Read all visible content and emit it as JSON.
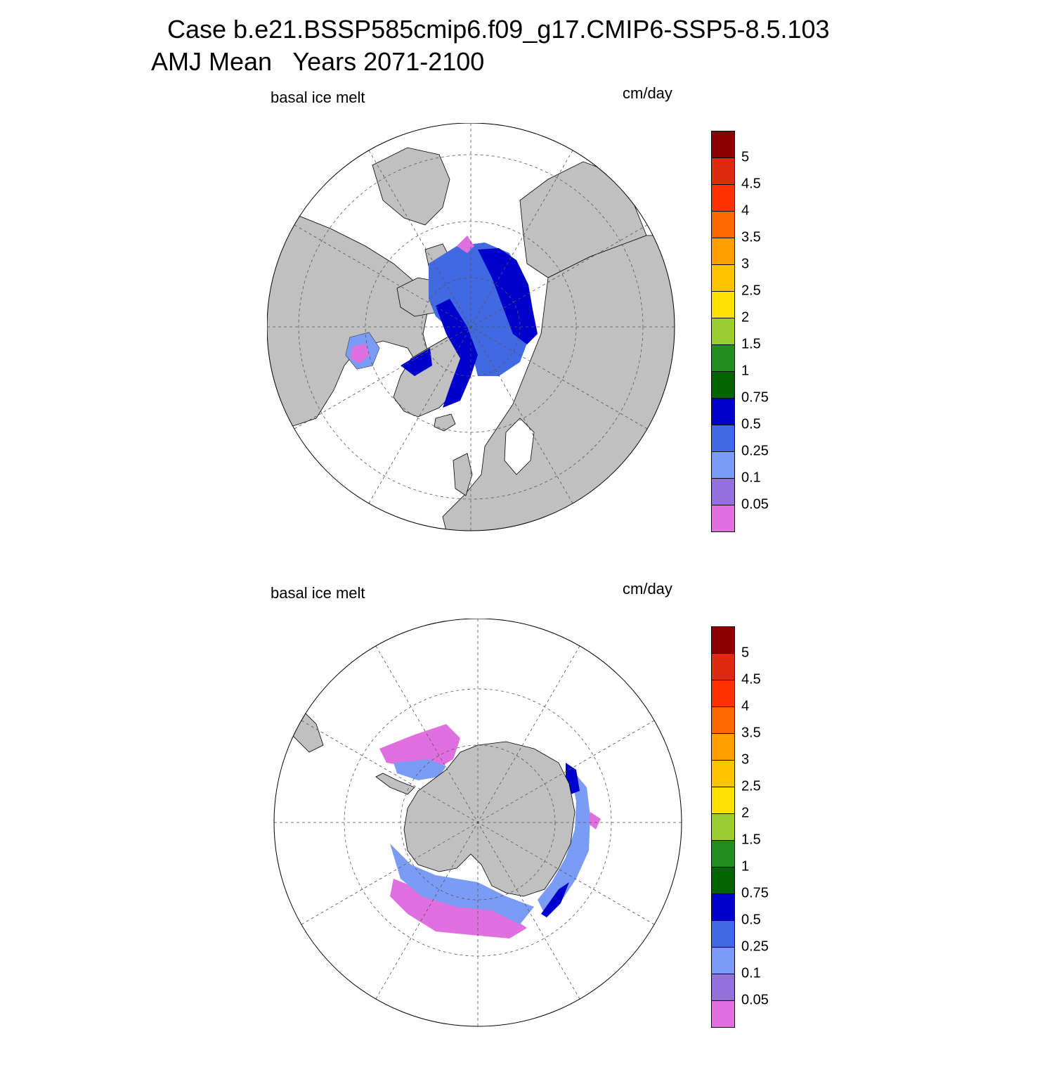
{
  "title": {
    "line1": "Case b.e21.BSSP585cmip6.f09_g17.CMIP6-SSP5-8.5.103",
    "line2": "AMJ Mean   Years 2071-2100"
  },
  "colors": {
    "land": "#c0c0c0",
    "ocean": "#ffffff",
    "grid": "#555555"
  },
  "colorbar": {
    "levels": [
      "0.05",
      "0.1",
      "0.25",
      "0.5",
      "0.75",
      "1",
      "1.5",
      "2",
      "2.5",
      "3",
      "3.5",
      "4",
      "4.5",
      "5"
    ],
    "colors": [
      "#e070e0",
      "#9370db",
      "#7b9cf5",
      "#4169e1",
      "#0000cd",
      "#006400",
      "#228b22",
      "#9acd32",
      "#ffe000",
      "#ffc400",
      "#ffa000",
      "#ff6600",
      "#ff3300",
      "#dd2a10",
      "#8b0000"
    ]
  },
  "panels": [
    {
      "id": "north",
      "variable": "basal ice melt",
      "units": "cm/day",
      "hemisphere": "Northern"
    },
    {
      "id": "south",
      "variable": "basal ice melt",
      "units": "cm/day",
      "hemisphere": "Southern"
    }
  ]
}
